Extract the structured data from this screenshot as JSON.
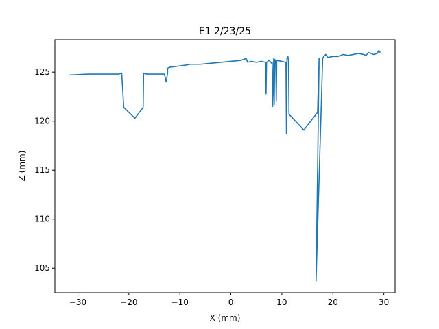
{
  "chart_data": {
    "type": "line",
    "title": "E1 2/23/25",
    "xlabel": "X (mm)",
    "ylabel": "Z (mm)",
    "xlim": [
      -34.5,
      32.2
    ],
    "ylim": [
      102.5,
      128.3
    ],
    "xticks": [
      -30,
      -20,
      -10,
      0,
      10,
      20,
      30
    ],
    "yticks": [
      105,
      110,
      115,
      120,
      125
    ],
    "xtick_labels": [
      "−30",
      "−20",
      "−10",
      "0",
      "10",
      "20",
      "30"
    ],
    "ytick_labels": [
      "105",
      "110",
      "115",
      "120",
      "125"
    ],
    "grid": false,
    "legend": "none",
    "series_color": "#1f77b4",
    "series": [
      {
        "x": [
          -31.8,
          -28,
          -25,
          -22,
          -21.4,
          -21,
          -20,
          -18.8,
          -17.2,
          -17.1,
          -16.5,
          -15,
          -13,
          -12.9,
          -12.7,
          -12.4,
          -12.4,
          -12,
          -10.5,
          -9,
          -8,
          -6,
          -4,
          -2,
          0,
          2,
          3,
          3.3,
          4,
          5,
          6,
          6.8,
          6.9,
          7,
          7.5,
          8.0,
          8.1,
          8.2,
          8.4,
          8.5,
          8.6,
          8.8,
          8.9,
          9.0,
          10,
          10.8,
          10.9,
          11.0,
          11.2,
          11.3,
          11.4,
          14.3,
          17.0,
          17.3,
          16.7,
          18.0,
          18.2,
          18.6,
          19,
          20,
          21,
          22,
          23,
          24,
          25,
          26,
          26.5,
          27,
          28,
          28.7,
          29,
          29.3
        ],
        "y": [
          124.7,
          124.8,
          124.8,
          124.8,
          124.9,
          121.4,
          120.9,
          120.3,
          121.4,
          124.9,
          124.8,
          124.8,
          124.8,
          124.5,
          124.0,
          124.9,
          125.4,
          125.5,
          125.6,
          125.7,
          125.8,
          125.8,
          125.9,
          126.0,
          126.1,
          126.2,
          126.4,
          126.0,
          126.1,
          126.0,
          126.1,
          126.0,
          122.8,
          126.0,
          126.2,
          125.9,
          126.0,
          121.5,
          126.4,
          121.7,
          126.3,
          126.1,
          122.0,
          126.2,
          126.1,
          126.0,
          118.7,
          126.4,
          126.6,
          126.1,
          120.7,
          119.1,
          120.9,
          126.4,
          103.7,
          126.4,
          126.6,
          126.8,
          126.5,
          126.6,
          126.6,
          126.8,
          126.7,
          126.8,
          126.9,
          126.8,
          126.7,
          127.0,
          126.8,
          126.9,
          127.2,
          127.0
        ]
      }
    ]
  }
}
